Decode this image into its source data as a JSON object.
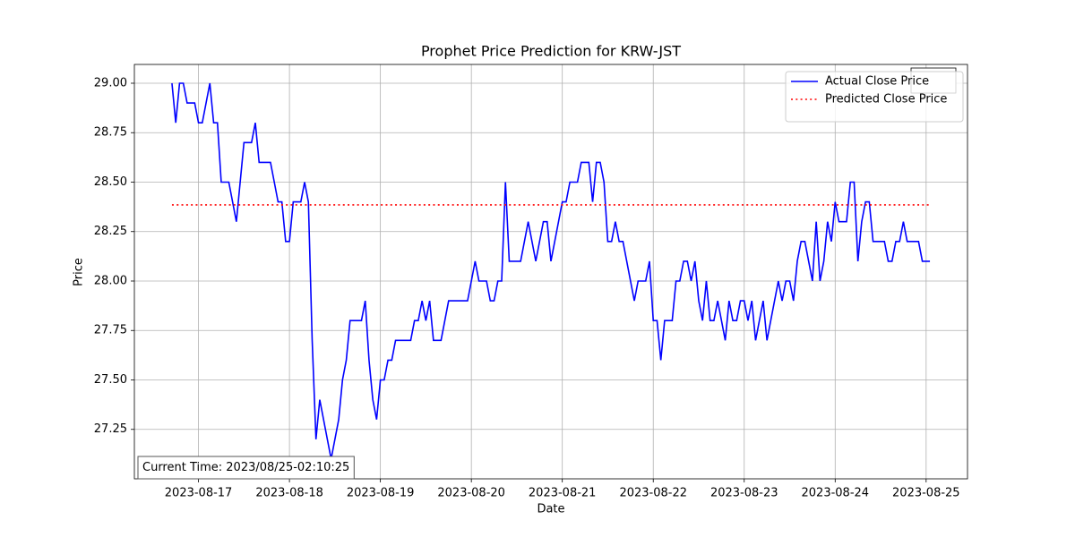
{
  "chart_data": {
    "type": "line",
    "title": "Prophet Price Prediction for KRW-JST",
    "x_label": "Date",
    "y_label": "Price",
    "annotation": "Current Time: 2023/08/25-02:10:25",
    "grid": true,
    "legend_position": "upper right",
    "xlim": [
      "2023-08-16 07:05",
      "2023-08-25 10:55"
    ],
    "xticks": [
      "2023-08-17",
      "2023-08-18",
      "2023-08-19",
      "2023-08-20",
      "2023-08-21",
      "2023-08-22",
      "2023-08-23",
      "2023-08-24",
      "2023-08-25"
    ],
    "ylim": [
      27.0,
      29.095
    ],
    "yticks": [
      {
        "value": 27.25,
        "label": "27.25"
      },
      {
        "value": 27.5,
        "label": "27.50"
      },
      {
        "value": 27.75,
        "label": "27.75"
      },
      {
        "value": 28.0,
        "label": "28.00"
      },
      {
        "value": 28.25,
        "label": "28.25"
      },
      {
        "value": 28.5,
        "label": "28.50"
      },
      {
        "value": 28.75,
        "label": "28.75"
      },
      {
        "value": 29.0,
        "label": "29.00"
      }
    ],
    "series": [
      {
        "name": "Actual Close Price",
        "color": "blue",
        "linestyle": "solid",
        "x": [
          "2023-08-16 17:00",
          "2023-08-16 18:00",
          "2023-08-16 19:00",
          "2023-08-16 20:00",
          "2023-08-16 21:00",
          "2023-08-16 23:00",
          "2023-08-17 00:00",
          "2023-08-17 01:00",
          "2023-08-17 03:00",
          "2023-08-17 04:00",
          "2023-08-17 05:00",
          "2023-08-17 06:00",
          "2023-08-17 08:00",
          "2023-08-17 10:00",
          "2023-08-17 12:00",
          "2023-08-17 14:00",
          "2023-08-17 15:00",
          "2023-08-17 16:00",
          "2023-08-17 19:00",
          "2023-08-17 21:00",
          "2023-08-17 22:00",
          "2023-08-17 23:00",
          "2023-08-18 00:00",
          "2023-08-18 01:00",
          "2023-08-18 03:00",
          "2023-08-18 04:00",
          "2023-08-18 05:00",
          "2023-08-18 06:00",
          "2023-08-18 07:00",
          "2023-08-18 08:00",
          "2023-08-18 11:00",
          "2023-08-18 13:00",
          "2023-08-18 14:00",
          "2023-08-18 15:00",
          "2023-08-18 16:00",
          "2023-08-18 19:00",
          "2023-08-18 20:00",
          "2023-08-18 21:00",
          "2023-08-18 22:00",
          "2023-08-18 23:00",
          "2023-08-19 00:00",
          "2023-08-19 01:00",
          "2023-08-19 02:00",
          "2023-08-19 03:00",
          "2023-08-19 04:00",
          "2023-08-19 08:00",
          "2023-08-19 09:00",
          "2023-08-19 10:00",
          "2023-08-19 11:00",
          "2023-08-19 12:00",
          "2023-08-19 13:00",
          "2023-08-19 14:00",
          "2023-08-19 16:00",
          "2023-08-19 18:00",
          "2023-08-19 23:00",
          "2023-08-20 00:00",
          "2023-08-20 01:00",
          "2023-08-20 02:00",
          "2023-08-20 04:00",
          "2023-08-20 05:00",
          "2023-08-20 06:00",
          "2023-08-20 07:00",
          "2023-08-20 08:00",
          "2023-08-20 09:00",
          "2023-08-20 10:00",
          "2023-08-20 13:00",
          "2023-08-20 15:00",
          "2023-08-20 17:00",
          "2023-08-20 19:00",
          "2023-08-20 20:00",
          "2023-08-20 21:00",
          "2023-08-21 00:00",
          "2023-08-21 01:00",
          "2023-08-21 02:00",
          "2023-08-21 04:00",
          "2023-08-21 05:00",
          "2023-08-21 07:00",
          "2023-08-21 08:00",
          "2023-08-21 09:00",
          "2023-08-21 10:00",
          "2023-08-21 11:00",
          "2023-08-21 12:00",
          "2023-08-21 13:00",
          "2023-08-21 14:00",
          "2023-08-21 15:00",
          "2023-08-21 16:00",
          "2023-08-21 19:00",
          "2023-08-21 20:00",
          "2023-08-21 22:00",
          "2023-08-21 23:00",
          "2023-08-22 00:00",
          "2023-08-22 01:00",
          "2023-08-22 02:00",
          "2023-08-22 03:00",
          "2023-08-22 05:00",
          "2023-08-22 06:00",
          "2023-08-22 07:00",
          "2023-08-22 08:00",
          "2023-08-22 09:00",
          "2023-08-22 10:00",
          "2023-08-22 11:00",
          "2023-08-22 12:00",
          "2023-08-22 13:00",
          "2023-08-22 14:00",
          "2023-08-22 15:00",
          "2023-08-22 16:00",
          "2023-08-22 17:00",
          "2023-08-22 19:00",
          "2023-08-22 20:00",
          "2023-08-22 21:00",
          "2023-08-22 22:00",
          "2023-08-22 23:00",
          "2023-08-23 00:00",
          "2023-08-23 01:00",
          "2023-08-23 02:00",
          "2023-08-23 03:00",
          "2023-08-23 05:00",
          "2023-08-23 06:00",
          "2023-08-23 09:00",
          "2023-08-23 10:00",
          "2023-08-23 11:00",
          "2023-08-23 12:00",
          "2023-08-23 13:00",
          "2023-08-23 14:00",
          "2023-08-23 15:00",
          "2023-08-23 16:00",
          "2023-08-23 18:00",
          "2023-08-23 19:00",
          "2023-08-23 20:00",
          "2023-08-23 21:00",
          "2023-08-23 22:00",
          "2023-08-23 23:00",
          "2023-08-24 00:00",
          "2023-08-24 01:00",
          "2023-08-24 03:00",
          "2023-08-24 04:00",
          "2023-08-24 05:00",
          "2023-08-24 06:00",
          "2023-08-24 07:00",
          "2023-08-24 08:00",
          "2023-08-24 09:00",
          "2023-08-24 10:00",
          "2023-08-24 13:00",
          "2023-08-24 14:00",
          "2023-08-24 15:00",
          "2023-08-24 16:00",
          "2023-08-24 17:00",
          "2023-08-24 18:00",
          "2023-08-24 19:00",
          "2023-08-24 22:00",
          "2023-08-24 23:00",
          "2023-08-25 01:00"
        ],
        "values": [
          29.0,
          28.8,
          29.0,
          29.0,
          28.9,
          28.9,
          28.8,
          28.8,
          29.0,
          28.8,
          28.8,
          28.5,
          28.5,
          28.3,
          28.7,
          28.7,
          28.8,
          28.6,
          28.6,
          28.4,
          28.4,
          28.2,
          28.2,
          28.4,
          28.4,
          28.5,
          28.4,
          27.7,
          27.2,
          27.4,
          27.1,
          27.3,
          27.5,
          27.6,
          27.8,
          27.8,
          27.9,
          27.6,
          27.4,
          27.3,
          27.5,
          27.5,
          27.6,
          27.6,
          27.7,
          27.7,
          27.8,
          27.8,
          27.9,
          27.8,
          27.9,
          27.7,
          27.7,
          27.9,
          27.9,
          28.0,
          28.1,
          28.0,
          28.0,
          27.9,
          27.9,
          28.0,
          28.0,
          28.5,
          28.1,
          28.1,
          28.3,
          28.1,
          28.3,
          28.3,
          28.1,
          28.4,
          28.4,
          28.5,
          28.5,
          28.6,
          28.6,
          28.4,
          28.6,
          28.6,
          28.5,
          28.2,
          28.2,
          28.3,
          28.2,
          28.2,
          27.9,
          28.0,
          28.0,
          28.1,
          27.8,
          27.8,
          27.6,
          27.8,
          27.8,
          28.0,
          28.0,
          28.1,
          28.1,
          28.0,
          28.1,
          27.9,
          27.8,
          28.0,
          27.8,
          27.8,
          27.9,
          27.7,
          27.9,
          27.8,
          27.8,
          27.9,
          27.9,
          27.8,
          27.9,
          27.7,
          27.9,
          27.7,
          28.0,
          27.9,
          28.0,
          28.0,
          27.9,
          28.1,
          28.2,
          28.2,
          28.0,
          28.3,
          28.0,
          28.1,
          28.3,
          28.2,
          28.4,
          28.3,
          28.3,
          28.5,
          28.5,
          28.1,
          28.3,
          28.4,
          28.4,
          28.2,
          28.2,
          28.1,
          28.1,
          28.2,
          28.2,
          28.3,
          28.2,
          28.2,
          28.1,
          28.1
        ]
      },
      {
        "name": "Predicted Close Price",
        "color": "red",
        "linestyle": "dotted",
        "x": [
          "2023-08-16 17:00",
          "2023-08-25 01:00"
        ],
        "values": [
          28.385,
          28.385
        ]
      }
    ]
  }
}
